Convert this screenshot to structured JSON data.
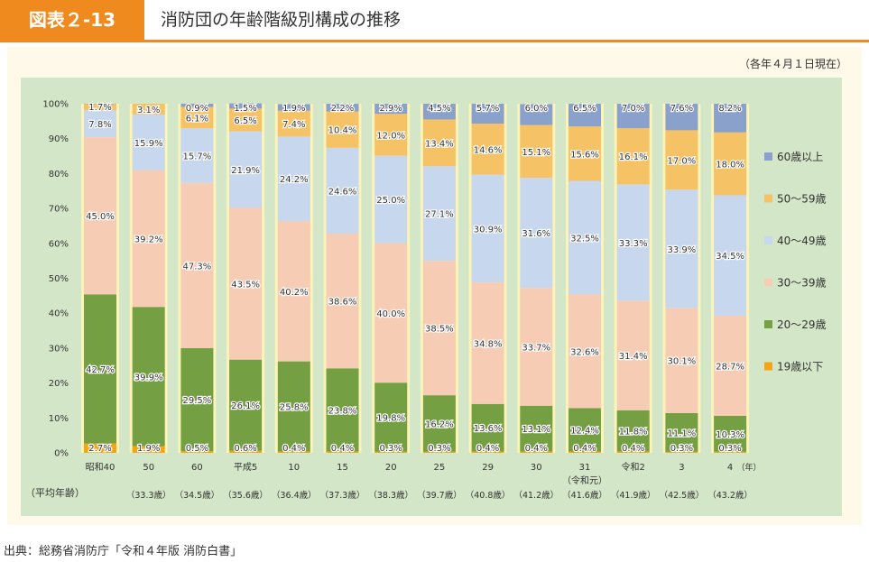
{
  "header": {
    "badge": "図表２-13",
    "title": "消防団の年齢階級別構成の推移"
  },
  "note": "（各年４月１日現在）",
  "source": "出典：総務省消防庁「令和４年版 消防白書」",
  "avg_label": "（平均年齢）",
  "x_unit": "（年）",
  "colors": {
    "60+": "#8aa1cb",
    "50-59": "#f6c266",
    "40-49": "#c6d7ee",
    "30-39": "#f6cdb4",
    "20-29": "#74a043",
    "19-": "#f2a515",
    "column_bg": "#fbf3b8",
    "frame": "#fef9e8",
    "plot_bg": "#d3e6c7",
    "accent": "#ef8a1e"
  },
  "chart_data": {
    "type": "bar",
    "stacked": true,
    "categories": [
      "昭和40",
      "50",
      "60",
      "平成5",
      "10",
      "15",
      "20",
      "25",
      "29",
      "30",
      "31",
      "令和2",
      "3",
      "4"
    ],
    "category_sublabels": [
      "",
      "",
      "",
      "",
      "",
      "",
      "",
      "",
      "",
      "",
      "（令和元）",
      "",
      "",
      ""
    ],
    "average_age": [
      "",
      "（33.3歳）",
      "（34.5歳）",
      "（35.6歳）",
      "（36.4歳）",
      "（37.3歳）",
      "（38.3歳）",
      "（39.7歳）",
      "（40.8歳）",
      "（41.2歳）",
      "（41.6歳）",
      "（41.9歳）",
      "（42.5歳）",
      "（43.2歳）"
    ],
    "yticks": [
      "0%",
      "10%",
      "20%",
      "30%",
      "40%",
      "50%",
      "60%",
      "70%",
      "80%",
      "90%",
      "100%"
    ],
    "ylim": [
      0,
      100
    ],
    "series": [
      {
        "name": "19歳以下",
        "key": "19-",
        "values": [
          2.7,
          1.9,
          0.5,
          0.6,
          0.4,
          0.4,
          0.3,
          0.3,
          0.4,
          0.4,
          0.4,
          0.4,
          0.3,
          0.3
        ]
      },
      {
        "name": "20～29歳",
        "key": "20-29",
        "values": [
          42.7,
          39.9,
          29.5,
          26.1,
          25.8,
          23.8,
          19.8,
          16.2,
          13.6,
          13.1,
          12.4,
          11.8,
          11.1,
          10.3
        ]
      },
      {
        "name": "30～39歳",
        "key": "30-39",
        "values": [
          45.0,
          39.2,
          47.3,
          43.5,
          40.2,
          38.6,
          40.0,
          38.5,
          34.8,
          33.7,
          32.6,
          31.4,
          30.1,
          28.7
        ]
      },
      {
        "name": "40～49歳",
        "key": "40-49",
        "values": [
          7.8,
          15.9,
          15.7,
          21.9,
          24.2,
          24.6,
          25.0,
          27.1,
          30.9,
          31.6,
          32.5,
          33.3,
          33.9,
          34.5
        ]
      },
      {
        "name": "50～59歳",
        "key": "50-59",
        "values": [
          1.7,
          3.1,
          6.1,
          6.5,
          7.4,
          10.4,
          12.0,
          13.4,
          14.6,
          15.1,
          15.6,
          16.1,
          17.0,
          18.0
        ]
      },
      {
        "name": "60歳以上",
        "key": "60+",
        "values": [
          0.1,
          0.0,
          0.9,
          1.5,
          1.9,
          2.2,
          2.9,
          4.5,
          5.7,
          6.0,
          6.5,
          7.0,
          7.6,
          8.2
        ]
      }
    ],
    "value_labels": [
      [
        "2.7%",
        "1.9%",
        "0.5%",
        "0.6%",
        "0.4%",
        "0.4%",
        "0.3%",
        "0.3%",
        "0.4%",
        "0.4%",
        "0.4%",
        "0.4%",
        "0.3%",
        "0.3%"
      ],
      [
        "42.7%",
        "39.9%",
        "29.5%",
        "26.1%",
        "25.8%",
        "23.8%",
        "19.8%",
        "16.2%",
        "13.6%",
        "13.1%",
        "12.4%",
        "11.8%",
        "11.1%",
        "10.3%"
      ],
      [
        "45.0%",
        "39.2%",
        "47.3%",
        "43.5%",
        "40.2%",
        "38.6%",
        "40.0%",
        "38.5%",
        "34.8%",
        "33.7%",
        "32.6%",
        "31.4%",
        "30.1%",
        "28.7%"
      ],
      [
        "7.8%",
        "15.9%",
        "15.7%",
        "21.9%",
        "24.2%",
        "24.6%",
        "25.0%",
        "27.1%",
        "30.9%",
        "31.6%",
        "32.5%",
        "33.3%",
        "33.9%",
        "34.5%"
      ],
      [
        "1.7%",
        "3.1%",
        "6.1%",
        "6.5%",
        "7.4%",
        "10.4%",
        "12.0%",
        "13.4%",
        "14.6%",
        "15.1%",
        "15.6%",
        "16.1%",
        "17.0%",
        "18.0%"
      ],
      [
        "",
        "",
        "0.9%",
        "1.5%",
        "1.9%",
        "2.2%",
        "2.9%",
        "4.5%",
        "5.7%",
        "6.0%",
        "6.5%",
        "7.0%",
        "7.6%",
        "8.2%"
      ]
    ],
    "legend_position": "right",
    "legend_order": [
      "60+",
      "50-59",
      "40-49",
      "30-39",
      "20-29",
      "19-"
    ]
  }
}
